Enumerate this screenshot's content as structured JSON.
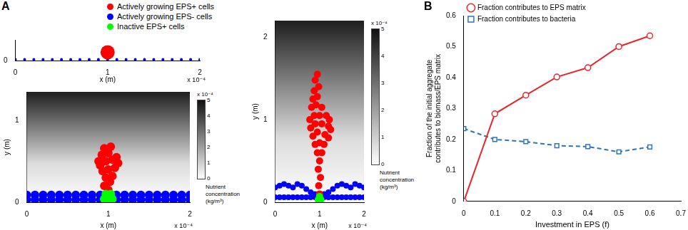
{
  "chart_data": [
    {
      "type": "scatter",
      "panel_label": "A",
      "x_label": "x (m)",
      "x_exponent_label": "x 10⁻⁴",
      "xlim": [
        0,
        2
      ],
      "xticks": [
        0,
        1,
        2
      ],
      "ylim": [
        0,
        0.2
      ],
      "yticks": [
        0
      ],
      "grid": false,
      "series": [
        {
          "color": "#0000ff",
          "x": [
            0,
            0.1,
            0.2,
            0.3,
            0.4,
            0.5,
            0.6,
            0.7,
            0.8,
            0.9,
            1,
            1.1,
            1.2,
            1.3,
            1.4,
            1.5,
            1.6,
            1.7,
            1.8,
            1.9,
            2
          ],
          "values": [
            0.01,
            0.01,
            0.01,
            0.01,
            0.01,
            0.01,
            0.01,
            0.01,
            0.01,
            0.01,
            0.01,
            0.01,
            0.01,
            0.01,
            0.01,
            0.01,
            0.01,
            0.01,
            0.01,
            0.01,
            0.01
          ]
        },
        {
          "color": "#ff0000",
          "x": [
            1
          ],
          "values": [
            0.08
          ]
        }
      ]
    },
    {
      "type": "scatter",
      "x_label": "x (m)",
      "y_label": "y (m)",
      "x_exponent_label": "x 10⁻⁴",
      "xlim": [
        0,
        2
      ],
      "xticks": [
        0,
        1,
        2
      ],
      "ylim": [
        0,
        1.35
      ],
      "yticks": [
        0,
        1
      ],
      "grid": false,
      "colorbar": {
        "label": "Nutrient concentration (kg/m³)",
        "exponent_label": "x 10⁻⁴",
        "range": [
          0,
          5
        ],
        "ticks": [
          0,
          1,
          2,
          3,
          4,
          5
        ]
      },
      "series": [
        {
          "color": "#0000ff",
          "x": [
            0,
            0.1,
            0.2,
            0.3,
            0.4,
            0.5,
            0.6,
            0.7,
            0.8,
            0.9,
            1,
            1.1,
            1.2,
            1.3,
            1.4,
            1.5,
            1.6,
            1.7,
            1.8,
            1.9,
            2,
            0,
            0.1,
            0.2,
            0.3,
            0.4,
            0.5,
            0.6,
            0.7,
            0.8,
            0.9,
            1,
            1.1,
            1.2,
            1.3,
            1.4,
            1.5,
            1.6,
            1.7,
            1.8,
            1.9,
            2
          ],
          "values": [
            0.03,
            0.03,
            0.03,
            0.03,
            0.03,
            0.03,
            0.03,
            0.03,
            0.03,
            0.03,
            0.03,
            0.03,
            0.03,
            0.03,
            0.03,
            0.03,
            0.03,
            0.03,
            0.03,
            0.03,
            0.03,
            0.09,
            0.09,
            0.09,
            0.09,
            0.09,
            0.09,
            0.09,
            0.09,
            0.09,
            0.09,
            0.09,
            0.09,
            0.09,
            0.09,
            0.09,
            0.09,
            0.09,
            0.09,
            0.09,
            0.09,
            0.09
          ]
        },
        {
          "color": "#ff0000",
          "x": [
            1,
            0.95,
            1.02,
            0.97,
            1.05,
            0.93,
            1,
            1.08,
            0.9,
            0.97,
            1.05,
            0.92,
            1,
            1.1,
            0.95,
            1.03,
            0.88,
            1.12
          ],
          "values": [
            0.15,
            0.2,
            0.25,
            0.3,
            0.32,
            0.38,
            0.4,
            0.42,
            0.45,
            0.5,
            0.52,
            0.58,
            0.6,
            0.55,
            0.66,
            0.68,
            0.5,
            0.48
          ]
        },
        {
          "color": "#00ff00",
          "x": [
            0.95,
            1,
            1.05,
            0.97,
            1.03
          ],
          "values": [
            0.04,
            0.04,
            0.04,
            0.1,
            0.1
          ]
        }
      ]
    },
    {
      "type": "scatter",
      "x_label": "x (m)",
      "y_label": "y (m)",
      "x_exponent_label": "x 10⁻⁴",
      "xlim": [
        0,
        2
      ],
      "xticks": [
        0,
        1,
        2
      ],
      "ylim": [
        0,
        2.2
      ],
      "yticks": [
        0,
        1,
        2
      ],
      "grid": false,
      "legend": "top",
      "colorbar": {
        "label": "Nutrient concentration (kg/m³)",
        "exponent_label": "x 10⁻⁴",
        "range": [
          0,
          5
        ],
        "ticks": [
          0,
          1,
          2,
          3,
          4,
          5
        ]
      },
      "series": [
        {
          "name": "Actively growing EPS- cells",
          "color": "#0000ff",
          "x": [
            0,
            0.1,
            0.2,
            0.3,
            0.4,
            0.5,
            0.6,
            0.7,
            0.8,
            0.9,
            1,
            1.1,
            1.2,
            1.3,
            1.4,
            1.5,
            1.6,
            1.7,
            1.8,
            1.9,
            2,
            0,
            0.1,
            0.2,
            0.3,
            0.4,
            0.5,
            0.6,
            0.7,
            0.8,
            0.9,
            1,
            1.1,
            1.2,
            1.3,
            1.4,
            1.5,
            1.6,
            1.7,
            1.8,
            1.9,
            2
          ],
          "values": [
            0.06,
            0.06,
            0.06,
            0.06,
            0.06,
            0.06,
            0.06,
            0.06,
            0.06,
            0.06,
            0.06,
            0.06,
            0.06,
            0.06,
            0.06,
            0.06,
            0.06,
            0.06,
            0.06,
            0.06,
            0.06,
            0.18,
            0.2,
            0.22,
            0.2,
            0.18,
            0.22,
            0.2,
            0.16,
            0.12,
            0.1,
            0.08,
            0.1,
            0.12,
            0.16,
            0.2,
            0.22,
            0.2,
            0.18,
            0.22,
            0.2,
            0.18
          ]
        },
        {
          "name": "Actively growing EPS+ cells",
          "color": "#ff0000",
          "x": [
            1,
            0.98,
            1.02,
            0.97,
            1,
            0.95,
            1.05,
            0.9,
            1,
            1.1,
            0.85,
            0.95,
            1.12,
            1.2,
            0.8,
            0.9,
            1.05,
            1.2,
            0.78,
            0.88,
            1,
            1.15,
            0.82,
            0.92,
            1.05,
            0.85,
            0.95,
            0.88,
            0.98,
            0.9,
            0.95,
            1.22,
            1.25
          ],
          "values": [
            0.1,
            0.2,
            0.3,
            0.4,
            0.5,
            0.6,
            0.6,
            0.7,
            0.72,
            0.7,
            0.8,
            0.85,
            0.82,
            0.78,
            0.9,
            0.95,
            0.95,
            0.92,
            1,
            1.05,
            1.05,
            1.05,
            1.15,
            1.18,
            1.15,
            1.25,
            1.28,
            1.35,
            1.4,
            1.48,
            1.55,
            1,
            0.88
          ]
        },
        {
          "name": "Inactive EPS+ cells",
          "color": "#00ff00",
          "x": [
            0.97,
            1.03,
            1
          ],
          "values": [
            0.03,
            0.03,
            0.07
          ]
        }
      ]
    },
    {
      "type": "line",
      "panel_label": "B",
      "x_label": "Investment in EPS (f)",
      "y_label": "Fraction of the initial aggregate contributes to biomass/EPS matrix",
      "xlim": [
        0,
        0.7
      ],
      "xticks": [
        0,
        0.1,
        0.2,
        0.3,
        0.4,
        0.5,
        0.6,
        0.7
      ],
      "ylim": [
        0,
        0.6
      ],
      "yticks": [
        0,
        0.1,
        0.2,
        0.3,
        0.4,
        0.5,
        0.6
      ],
      "grid": false,
      "legend": "upper left",
      "series": [
        {
          "name": "Fraction contributes to bacteria",
          "color": "#2e75b6",
          "marker": "square",
          "line_style": "dashed",
          "x": [
            0,
            0.1,
            0.2,
            0.3,
            0.4,
            0.5,
            0.6
          ],
          "values": [
            0.235,
            0.2,
            0.193,
            0.18,
            0.177,
            0.16,
            0.176
          ]
        },
        {
          "name": "Fraction contributes to EPS matrix",
          "color": "#e8262a",
          "marker": "circle",
          "line_style": "solid",
          "x": [
            0,
            0.1,
            0.2,
            0.3,
            0.4,
            0.5,
            0.6
          ],
          "values": [
            0,
            0.283,
            0.343,
            0.402,
            0.432,
            0.5,
            0.535
          ]
        }
      ]
    }
  ]
}
